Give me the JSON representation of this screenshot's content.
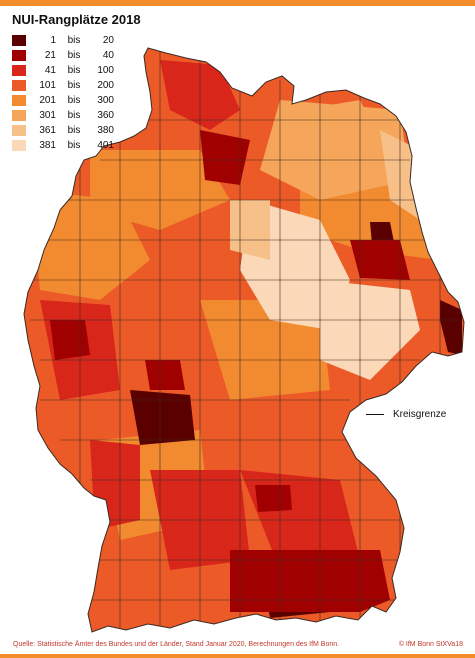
{
  "title": "NUI-Rangplätze 2018",
  "legend": [
    {
      "from": "1",
      "bis": "bis",
      "to": "20",
      "color": "#5a0000"
    },
    {
      "from": "21",
      "bis": "bis",
      "to": "40",
      "color": "#a00000"
    },
    {
      "from": "41",
      "bis": "bis",
      "to": "100",
      "color": "#d8261a"
    },
    {
      "from": "101",
      "bis": "bis",
      "to": "200",
      "color": "#ec5a28"
    },
    {
      "from": "201",
      "bis": "bis",
      "to": "300",
      "color": "#f28a30"
    },
    {
      "from": "301",
      "bis": "bis",
      "to": "360",
      "color": "#f5a65a"
    },
    {
      "from": "361",
      "bis": "bis",
      "to": "380",
      "color": "#f8c089"
    },
    {
      "from": "381",
      "bis": "bis",
      "to": "401",
      "color": "#fbd9b8"
    }
  ],
  "boundary_legend": "Kreisgrenze",
  "source": "Quelle: Statistische Ämter des Bundes und der Länder, Stand Januar 2020, Berechnungen des IfM Bonn.",
  "copyright": "© IfM Bonn StXVa18",
  "colors": {
    "accent_bar": "#f28c28",
    "source_text": "#c0392b",
    "boundary": "#3a2a22"
  }
}
